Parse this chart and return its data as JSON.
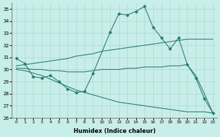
{
  "xlabel": "Humidex (Indice chaleur)",
  "color": "#2a7b6f",
  "bg_color": "#c8eeea",
  "grid_color": "#aad8d0",
  "ylim": [
    26,
    35.5
  ],
  "yticks": [
    26,
    27,
    28,
    29,
    30,
    31,
    32,
    33,
    34,
    35
  ],
  "xlim": [
    -0.5,
    23.5
  ],
  "zigzag_x": [
    0,
    1,
    2,
    3,
    4,
    5,
    6,
    7,
    8,
    9,
    11,
    12,
    13,
    14,
    15,
    16,
    17,
    18,
    19,
    20,
    21,
    22,
    23
  ],
  "zigzag_y": [
    30.9,
    30.5,
    29.4,
    29.3,
    29.5,
    29.0,
    28.4,
    28.1,
    28.2,
    29.7,
    33.1,
    34.6,
    34.5,
    34.8,
    35.2,
    33.5,
    32.6,
    31.7,
    32.6,
    30.4,
    29.3,
    27.6,
    26.4
  ],
  "upper_env_x": [
    0,
    1,
    2,
    3,
    4,
    5,
    6,
    7,
    8,
    9,
    10,
    11,
    12,
    13,
    14,
    15,
    16,
    17,
    18,
    19,
    20,
    21,
    22,
    23
  ],
  "upper_env_y": [
    30.3,
    30.4,
    30.5,
    30.6,
    30.7,
    30.8,
    30.9,
    31.1,
    31.2,
    31.3,
    31.5,
    31.6,
    31.7,
    31.8,
    31.9,
    32.0,
    32.1,
    32.2,
    32.3,
    32.4,
    32.5,
    32.5,
    32.5,
    32.5
  ],
  "lower_env_x": [
    0,
    1,
    2,
    3,
    4,
    5,
    6,
    7,
    8,
    9,
    10,
    11,
    12,
    13,
    14,
    15,
    16,
    17,
    18,
    19,
    20,
    21,
    22,
    23
  ],
  "lower_env_y": [
    30.0,
    29.9,
    29.7,
    29.5,
    29.2,
    28.9,
    28.6,
    28.3,
    28.1,
    27.9,
    27.7,
    27.5,
    27.3,
    27.2,
    27.1,
    27.0,
    26.9,
    26.8,
    26.7,
    26.6,
    26.5,
    26.5,
    26.5,
    26.4
  ],
  "mid_env_x": [
    0,
    1,
    2,
    3,
    4,
    5,
    6,
    7,
    8,
    9,
    10,
    11,
    12,
    13,
    14,
    15,
    16,
    17,
    18,
    19,
    20,
    21,
    22,
    23
  ],
  "mid_env_y": [
    30.1,
    30.1,
    30.0,
    30.0,
    29.9,
    29.9,
    29.8,
    29.8,
    29.8,
    29.9,
    30.0,
    30.0,
    30.0,
    30.1,
    30.1,
    30.2,
    30.2,
    30.2,
    30.3,
    30.3,
    30.4,
    29.5,
    28.0,
    26.4
  ]
}
